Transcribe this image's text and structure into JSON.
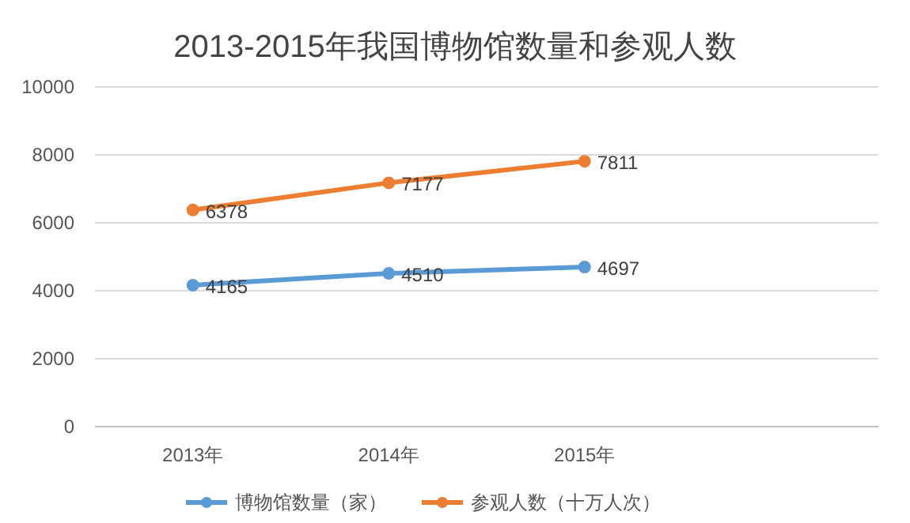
{
  "chart_data": {
    "type": "line",
    "title": "2013-2015年我国博物馆数量和参观人数",
    "categories": [
      "2013年",
      "2014年",
      "2015年",
      null
    ],
    "series": [
      {
        "name": "博物馆数量（家）",
        "color": "#5b9bd5",
        "values": [
          4165,
          4510,
          4697,
          null
        ]
      },
      {
        "name": "参观人数（十万人次）",
        "color": "#ed7d31",
        "values": [
          6378,
          7177,
          7811,
          null
        ]
      }
    ],
    "ylim": [
      0,
      10000
    ],
    "yticks": [
      0,
      2000,
      4000,
      6000,
      8000,
      10000
    ],
    "grid": "y",
    "legend": "bottom",
    "marker": "circle",
    "line_style": "solid",
    "data_labels": true
  }
}
